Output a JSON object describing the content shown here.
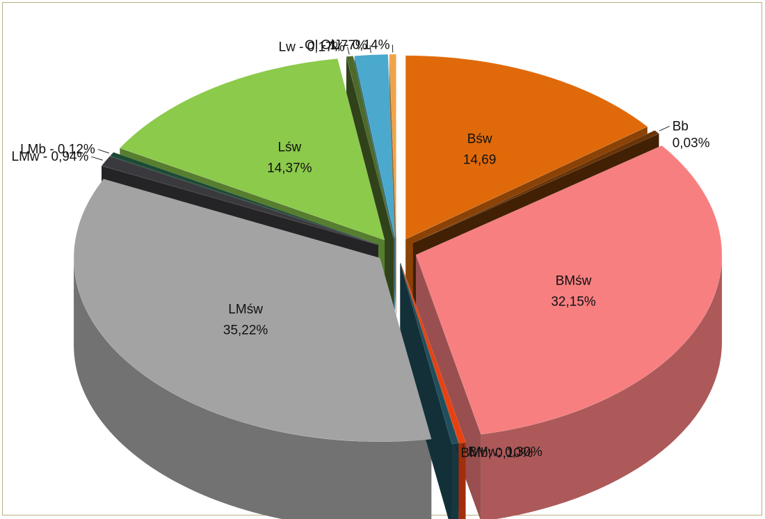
{
  "chart_data": {
    "type": "pie",
    "style": "exploded 3D pie",
    "slices": [
      {
        "name": "Bśw",
        "value": 14.69,
        "color": "#e06a0a",
        "labels": [
          "Bśw",
          "14,69"
        ],
        "placement": "inside",
        "icon": "none"
      },
      {
        "name": "Bb",
        "value": 0.03,
        "color": "#6b3406",
        "labels": [
          "Bb",
          "0,03%"
        ],
        "placement": "outside-right",
        "icon": "none"
      },
      {
        "name": "BMśw",
        "value": 32.15,
        "color": "#f77f80",
        "labels": [
          "BMśw",
          "32,15%"
        ],
        "placement": "inside",
        "icon": "none"
      },
      {
        "name": "BMw",
        "value": 0.3,
        "color": "#e8410f",
        "labels": [
          "BMw; 0,30%"
        ],
        "placement": "outside-bottom",
        "icon": "none"
      },
      {
        "name": "BMb",
        "value": 0.1,
        "color": "#1f4e5c",
        "labels": [
          "BMb; 0,10%"
        ],
        "placement": "outside-bottom",
        "icon": "none"
      },
      {
        "name": "LMśw",
        "value": 35.22,
        "color": "#a3a3a3",
        "labels": [
          "LMśw",
          "35,22%"
        ],
        "placement": "inside",
        "icon": "none"
      },
      {
        "name": "LMw",
        "value": 0.94,
        "color": "#3a3a3e",
        "labels": [
          "LMw - 0,94%"
        ],
        "placement": "outside-left",
        "icon": "none"
      },
      {
        "name": "LMb",
        "value": 0.12,
        "color": "#1b4a35",
        "labels": [
          "LMb - 0,12%"
        ],
        "placement": "outside-left",
        "icon": "none"
      },
      {
        "name": "Lśw",
        "value": 14.37,
        "color": "#8cca4b",
        "labels": [
          "Lśw",
          "14,37%"
        ],
        "placement": "inside",
        "icon": "none"
      },
      {
        "name": "Lw",
        "value": 0.17,
        "color": "#4d6a2a",
        "labels": [
          "Lw - 0,17%"
        ],
        "placement": "outside-top",
        "icon": "none"
      },
      {
        "name": "Ol",
        "value": 1.77,
        "color": "#4aa9cc",
        "labels": [
          "Ol - 1,77%"
        ],
        "placement": "outside-top",
        "icon": "none"
      },
      {
        "name": "OlJ",
        "value": 0.14,
        "color": "#f0a34a",
        "labels": [
          "OlJ - 0,14%"
        ],
        "placement": "outside-top",
        "icon": "none"
      }
    ]
  }
}
